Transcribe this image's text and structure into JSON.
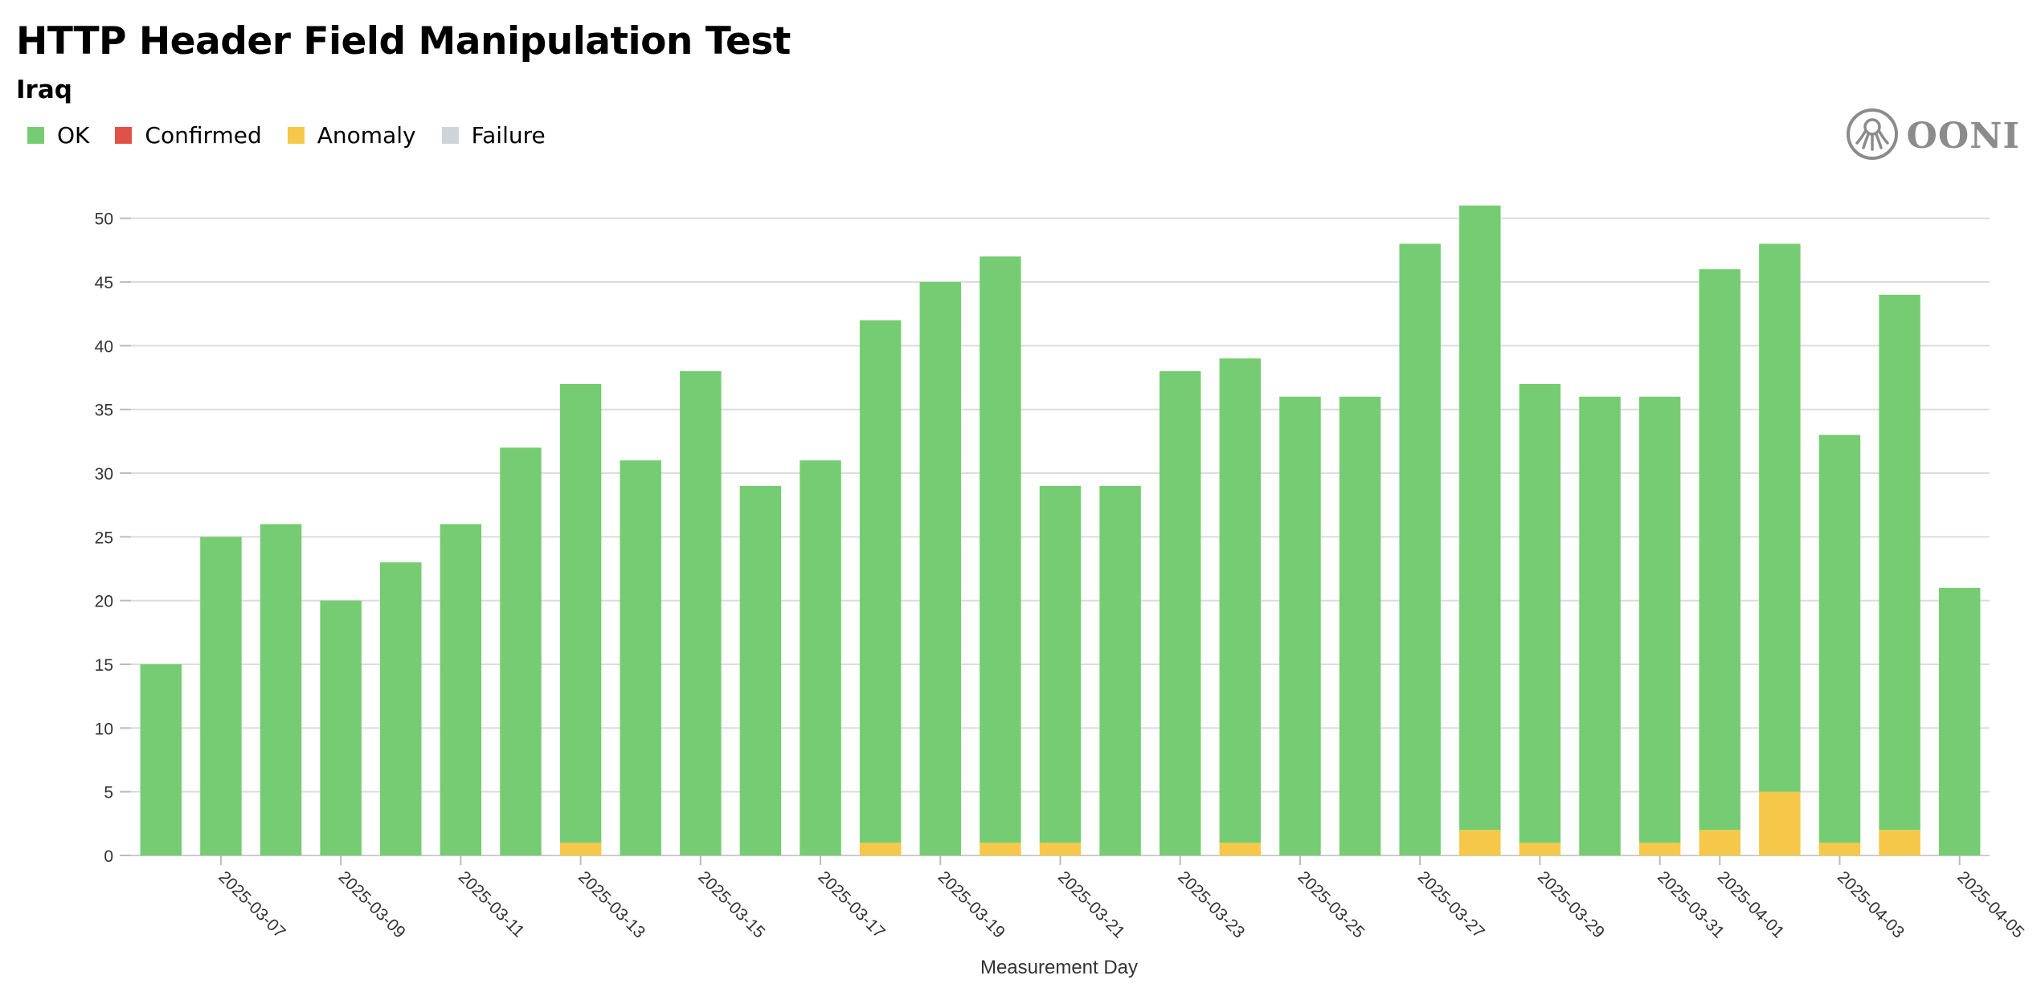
{
  "header": {
    "title": "HTTP Header Field Manipulation Test",
    "subtitle": "Iraq"
  },
  "legend": [
    {
      "label": "OK",
      "color": "#76cc72"
    },
    {
      "label": "Confirmed",
      "color": "#e0514a"
    },
    {
      "label": "Anomaly",
      "color": "#f5c84a"
    },
    {
      "label": "Failure",
      "color": "#cfd4d9"
    }
  ],
  "logo": {
    "text": "OONI",
    "icon": "ooni-octopus-icon"
  },
  "chart_data": {
    "type": "bar",
    "stacked": true,
    "x": [
      "2025-03-06",
      "2025-03-07",
      "2025-03-08",
      "2025-03-09",
      "2025-03-10",
      "2025-03-11",
      "2025-03-12",
      "2025-03-13",
      "2025-03-14",
      "2025-03-15",
      "2025-03-16",
      "2025-03-17",
      "2025-03-18",
      "2025-03-19",
      "2025-03-20",
      "2025-03-21",
      "2025-03-22",
      "2025-03-23",
      "2025-03-24",
      "2025-03-25",
      "2025-03-26",
      "2025-03-27",
      "2025-03-28",
      "2025-03-29",
      "2025-03-30",
      "2025-03-31",
      "2025-04-01",
      "2025-04-02",
      "2025-04-03",
      "2025-04-04",
      "2025-04-05"
    ],
    "tick_labels": [
      "2025-03-07",
      "2025-03-09",
      "2025-03-11",
      "2025-03-13",
      "2025-03-15",
      "2025-03-17",
      "2025-03-19",
      "2025-03-21",
      "2025-03-23",
      "2025-03-25",
      "2025-03-27",
      "2025-03-29",
      "2025-03-31",
      "2025-04-01",
      "2025-04-03",
      "2025-04-05"
    ],
    "series": [
      {
        "name": "OK",
        "color": "#76cc72",
        "values": [
          15,
          25,
          26,
          20,
          23,
          26,
          32,
          36,
          31,
          38,
          29,
          31,
          41,
          45,
          46,
          28,
          29,
          38,
          38,
          36,
          36,
          48,
          49,
          36,
          36,
          35,
          44,
          43,
          32,
          42,
          21
        ]
      },
      {
        "name": "Confirmed",
        "color": "#e0514a",
        "values": [
          0,
          0,
          0,
          0,
          0,
          0,
          0,
          0,
          0,
          0,
          0,
          0,
          0,
          0,
          0,
          0,
          0,
          0,
          0,
          0,
          0,
          0,
          0,
          0,
          0,
          0,
          0,
          0,
          0,
          0,
          0
        ]
      },
      {
        "name": "Anomaly",
        "color": "#f5c84a",
        "values": [
          0,
          0,
          0,
          0,
          0,
          0,
          0,
          1,
          0,
          0,
          0,
          0,
          1,
          0,
          1,
          1,
          0,
          0,
          1,
          0,
          0,
          0,
          2,
          1,
          0,
          1,
          2,
          5,
          1,
          2,
          0
        ]
      },
      {
        "name": "Failure",
        "color": "#cfd4d9",
        "values": [
          0,
          0,
          0,
          0,
          0,
          0,
          0,
          0,
          0,
          0,
          0,
          0,
          0,
          0,
          0,
          0,
          0,
          0,
          0,
          0,
          0,
          0,
          0,
          0,
          0,
          0,
          0,
          0,
          0,
          0,
          0
        ]
      }
    ],
    "yticks": [
      0,
      5,
      10,
      15,
      20,
      25,
      30,
      35,
      40,
      45,
      50
    ],
    "ylim": [
      0,
      52
    ],
    "xlabel": "Measurement Day",
    "ylabel": "",
    "grid": true
  }
}
